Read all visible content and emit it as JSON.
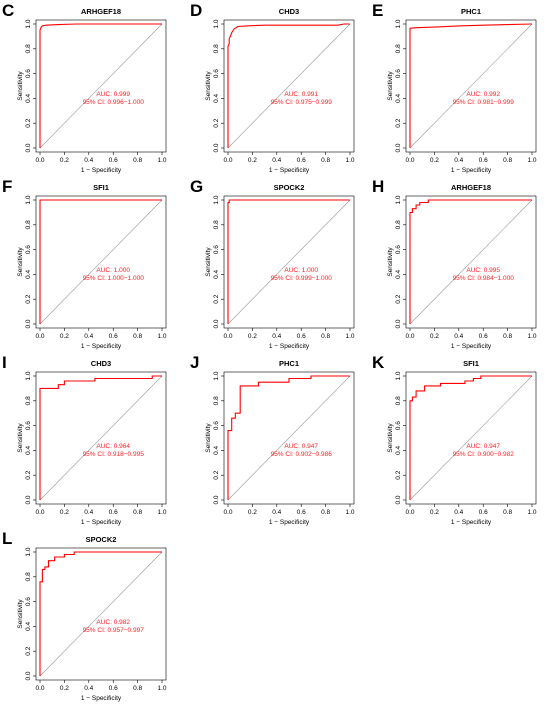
{
  "chart_data": [
    {
      "panel": "C",
      "type": "line",
      "title": "ARHGEF18",
      "xlabel": "1 − Specificity",
      "ylabel": "Sensitivity",
      "xlim": [
        0,
        1
      ],
      "ylim": [
        0,
        1
      ],
      "xticks": [
        "0.0",
        "0.2",
        "0.4",
        "0.6",
        "0.8",
        "1.0"
      ],
      "yticks": [
        "0.0",
        "0.2",
        "0.4",
        "0.6",
        "0.8",
        "1.0"
      ],
      "auc": "AUC: 0.999",
      "ci": "95% CI: 0.996−1.000",
      "roc": {
        "x": [
          0,
          0,
          0.01,
          0.02,
          0.05,
          0.15,
          0.3,
          0.6,
          1.0
        ],
        "y": [
          0,
          0.95,
          0.975,
          0.985,
          0.99,
          0.995,
          1.0,
          1.0,
          1.0
        ]
      }
    },
    {
      "panel": "D",
      "type": "line",
      "title": "CHD3",
      "xlabel": "1 − Specificity",
      "ylabel": "Sensitivity",
      "xlim": [
        0,
        1
      ],
      "ylim": [
        0,
        1
      ],
      "xticks": [
        "0.0",
        "0.2",
        "0.4",
        "0.6",
        "0.8",
        "1.0"
      ],
      "yticks": [
        "0.0",
        "0.2",
        "0.4",
        "0.6",
        "0.8",
        "1.0"
      ],
      "auc": "AUC: 0.991",
      "ci": "95% CI: 0.975−0.999",
      "roc": {
        "x": [
          0,
          0,
          0.01,
          0.01,
          0.02,
          0.03,
          0.05,
          0.08,
          0.15,
          0.3,
          0.5,
          0.9,
          0.95,
          1.0
        ],
        "y": [
          0,
          0.82,
          0.84,
          0.88,
          0.9,
          0.93,
          0.96,
          0.98,
          0.985,
          0.99,
          0.99,
          0.99,
          1.0,
          1.0
        ]
      }
    },
    {
      "panel": "E",
      "type": "line",
      "title": "PHC1",
      "xlabel": "1 − Specificity",
      "ylabel": "Sensitivity",
      "xlim": [
        0,
        1
      ],
      "ylim": [
        0,
        1
      ],
      "xticks": [
        "0.0",
        "0.2",
        "0.4",
        "0.6",
        "0.8",
        "1.0"
      ],
      "yticks": [
        "0.0",
        "0.2",
        "0.4",
        "0.6",
        "0.8",
        "1.0"
      ],
      "auc": "AUC: 0.992",
      "ci": "95% CI: 0.981−0.999",
      "roc": {
        "x": [
          0,
          0,
          0.05,
          0.2,
          0.4,
          0.6,
          0.8,
          1.0
        ],
        "y": [
          0,
          0.965,
          0.97,
          0.975,
          0.985,
          0.99,
          0.995,
          1.0
        ]
      }
    },
    {
      "panel": "F",
      "type": "line",
      "title": "SFI1",
      "xlabel": "1 − Specificity",
      "ylabel": "Sensitivity",
      "xlim": [
        0,
        1
      ],
      "ylim": [
        0,
        1
      ],
      "xticks": [
        "0.0",
        "0.2",
        "0.4",
        "0.6",
        "0.8",
        "1.0"
      ],
      "yticks": [
        "0.0",
        "0.2",
        "0.4",
        "0.6",
        "0.8",
        "1.0"
      ],
      "auc": "AUC: 1.000",
      "ci": "95% CI: 1.000−1.000",
      "roc": {
        "x": [
          0,
          0,
          1.0
        ],
        "y": [
          0,
          1.0,
          1.0
        ]
      }
    },
    {
      "panel": "G",
      "type": "line",
      "title": "SPOCK2",
      "xlabel": "1 − Specificity",
      "ylabel": "Sensitivity",
      "xlim": [
        0,
        1
      ],
      "ylim": [
        0,
        1
      ],
      "xticks": [
        "0.0",
        "0.2",
        "0.4",
        "0.6",
        "0.8",
        "1.0"
      ],
      "yticks": [
        "0.0",
        "0.2",
        "0.4",
        "0.6",
        "0.8",
        "1.0"
      ],
      "auc": "AUC: 1.000",
      "ci": "95% CI: 0.999−1.000",
      "roc": {
        "x": [
          0,
          0,
          0.01,
          0.01,
          1.0
        ],
        "y": [
          0,
          0.98,
          0.98,
          1.0,
          1.0
        ]
      }
    },
    {
      "panel": "H",
      "type": "line",
      "title": "ARHGEF18",
      "xlabel": "1 − Specificity",
      "ylabel": "Sensitivity",
      "xlim": [
        0,
        1
      ],
      "ylim": [
        0,
        1
      ],
      "xticks": [
        "0.0",
        "0.2",
        "0.4",
        "0.6",
        "0.8",
        "1.0"
      ],
      "yticks": [
        "0.0",
        "0.2",
        "0.4",
        "0.6",
        "0.8",
        "1.0"
      ],
      "auc": "AUC: 0.995",
      "ci": "95% CI: 0.984−1.000",
      "roc": {
        "x": [
          0,
          0,
          0.02,
          0.02,
          0.05,
          0.05,
          0.08,
          0.08,
          0.15,
          0.15,
          1.0
        ],
        "y": [
          0,
          0.9,
          0.9,
          0.93,
          0.93,
          0.96,
          0.96,
          0.98,
          0.98,
          1.0,
          1.0
        ]
      }
    },
    {
      "panel": "I",
      "type": "line",
      "title": "CHD3",
      "xlabel": "1 − Specificity",
      "ylabel": "Sensitivity",
      "xlim": [
        0,
        1
      ],
      "ylim": [
        0,
        1
      ],
      "xticks": [
        "0.0",
        "0.2",
        "0.4",
        "0.6",
        "0.8",
        "1.0"
      ],
      "yticks": [
        "0.0",
        "0.2",
        "0.4",
        "0.6",
        "0.8",
        "1.0"
      ],
      "auc": "AUC: 0.964",
      "ci": "95% CI: 0.918−0.995",
      "roc": {
        "x": [
          0,
          0,
          0.15,
          0.15,
          0.2,
          0.2,
          0.45,
          0.45,
          0.92,
          0.92,
          1.0
        ],
        "y": [
          0,
          0.9,
          0.9,
          0.93,
          0.93,
          0.96,
          0.96,
          0.98,
          0.98,
          1.0,
          1.0
        ]
      }
    },
    {
      "panel": "J",
      "type": "line",
      "title": "PHC1",
      "xlabel": "1 − Specificity",
      "ylabel": "Sensitivity",
      "xlim": [
        0,
        1
      ],
      "ylim": [
        0,
        1
      ],
      "xticks": [
        "0.0",
        "0.2",
        "0.4",
        "0.6",
        "0.8",
        "1.0"
      ],
      "yticks": [
        "0.0",
        "0.2",
        "0.4",
        "0.6",
        "0.8",
        "1.0"
      ],
      "auc": "AUC: 0.947",
      "ci": "95% CI: 0.902−0.986",
      "roc": {
        "x": [
          0,
          0,
          0.03,
          0.03,
          0.06,
          0.06,
          0.1,
          0.1,
          0.25,
          0.25,
          0.5,
          0.5,
          0.68,
          0.68,
          1.0
        ],
        "y": [
          0,
          0.56,
          0.56,
          0.66,
          0.66,
          0.7,
          0.7,
          0.92,
          0.92,
          0.95,
          0.95,
          0.98,
          0.98,
          1.0,
          1.0
        ]
      }
    },
    {
      "panel": "K",
      "type": "line",
      "title": "SFI1",
      "xlabel": "1 − Specificity",
      "ylabel": "Sensitivity",
      "xlim": [
        0,
        1
      ],
      "ylim": [
        0,
        1
      ],
      "xticks": [
        "0.0",
        "0.2",
        "0.4",
        "0.6",
        "0.8",
        "1.0"
      ],
      "yticks": [
        "0.0",
        "0.2",
        "0.4",
        "0.6",
        "0.8",
        "1.0"
      ],
      "auc": "AUC: 0.947",
      "ci": "95% CI: 0.900−0.982",
      "roc": {
        "x": [
          0,
          0,
          0.02,
          0.02,
          0.05,
          0.05,
          0.12,
          0.12,
          0.25,
          0.25,
          0.45,
          0.45,
          0.52,
          0.52,
          0.58,
          0.58,
          1.0
        ],
        "y": [
          0,
          0.8,
          0.8,
          0.83,
          0.83,
          0.88,
          0.88,
          0.92,
          0.92,
          0.94,
          0.94,
          0.96,
          0.96,
          0.98,
          0.98,
          1.0,
          1.0
        ]
      }
    },
    {
      "panel": "L",
      "type": "line",
      "title": "SPOCK2",
      "xlabel": "1 − Specificity",
      "ylabel": "Sensitivity",
      "xlim": [
        0,
        1
      ],
      "ylim": [
        0,
        1
      ],
      "xticks": [
        "0.0",
        "0.2",
        "0.4",
        "0.6",
        "0.8",
        "1.0"
      ],
      "yticks": [
        "0.0",
        "0.2",
        "0.4",
        "0.6",
        "0.8",
        "1.0"
      ],
      "auc": "AUC: 0.982",
      "ci": "95% CI: 0.957−0.997",
      "roc": {
        "x": [
          0,
          0,
          0.02,
          0.02,
          0.04,
          0.04,
          0.07,
          0.07,
          0.12,
          0.12,
          0.2,
          0.2,
          0.28,
          0.28,
          1.0
        ],
        "y": [
          0,
          0.76,
          0.76,
          0.86,
          0.86,
          0.88,
          0.88,
          0.93,
          0.93,
          0.96,
          0.96,
          0.98,
          0.98,
          1.0,
          1.0
        ]
      }
    }
  ]
}
